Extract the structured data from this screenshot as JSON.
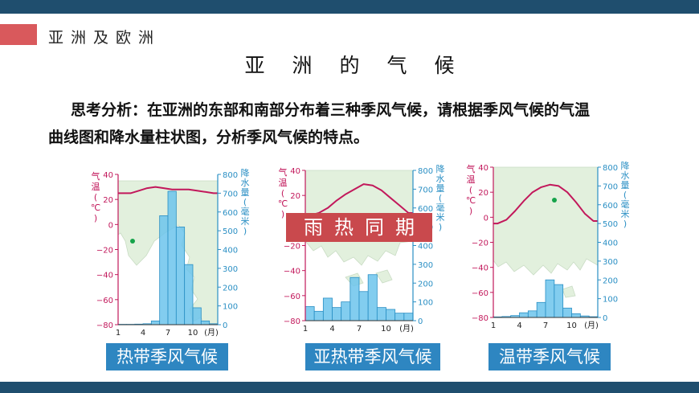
{
  "header": {
    "section": "亚洲及欧洲",
    "title": "亚洲的气候"
  },
  "question": {
    "line1": "思考分析：在亚洲的东部和南部分布着三种季风气候，请根据季风气候的气温",
    "line2": "曲线图和降水量柱状图，分析季风气候的特点。"
  },
  "colors": {
    "header_bar": "#1f4e6e",
    "accent_red": "#d9595c",
    "temp_line": "#c2185b",
    "precip_bar": "#6cc4ec",
    "caption_bg": "#2e86c1",
    "map_land": "#e2f0dd",
    "stamp_bg": "#c9494d",
    "location_dot": "#16a34a"
  },
  "stamp": "雨热同期",
  "chart_data": [
    {
      "type": "bar",
      "title": "热带季风气候",
      "y_left_label": "气温(℃)",
      "y_right_label": "降水量(毫米)",
      "x_ticks": [
        "1",
        "4",
        "7",
        "10"
      ],
      "x_unit": "(月)",
      "left_ticks": [
        "40",
        "20",
        "0",
        "−20",
        "−40",
        "−60",
        "−80"
      ],
      "right_ticks": [
        "800",
        "700",
        "600",
        "500",
        "400",
        "300",
        "200",
        "100",
        "0"
      ],
      "ylim_temp": [
        -80,
        40
      ],
      "ylim_precip": [
        0,
        800
      ],
      "months": [
        1,
        2,
        3,
        4,
        5,
        6,
        7,
        8,
        9,
        10,
        11,
        12
      ],
      "temperature": [
        25,
        25,
        27,
        29,
        30,
        29,
        28,
        28,
        28,
        27,
        26,
        25
      ],
      "precipitation": [
        2,
        2,
        3,
        5,
        20,
        580,
        710,
        520,
        320,
        90,
        20,
        5
      ]
    },
    {
      "type": "bar",
      "title": "亚热带季风气候",
      "y_left_label": "气温(℃)",
      "y_right_label": "降水量(毫米)",
      "x_ticks": [
        "1",
        "4",
        "7",
        "10"
      ],
      "x_unit": "(月)",
      "left_ticks": [
        "40",
        "20",
        "0",
        "−20",
        "−40",
        "−60",
        "−80"
      ],
      "right_ticks": [
        "800",
        "700",
        "600",
        "500",
        "400",
        "300",
        "200",
        "100",
        "0"
      ],
      "ylim_temp": [
        -80,
        40
      ],
      "ylim_precip": [
        0,
        800
      ],
      "months": [
        1,
        2,
        3,
        4,
        5,
        6,
        7,
        8,
        9,
        10,
        11,
        12
      ],
      "temperature": [
        4,
        6,
        10,
        16,
        21,
        25,
        29,
        28,
        24,
        18,
        12,
        6
      ],
      "precipitation": [
        75,
        50,
        120,
        70,
        100,
        230,
        155,
        245,
        70,
        60,
        40,
        40
      ]
    },
    {
      "type": "bar",
      "title": "温带季风气候",
      "y_left_label": "气温(℃)",
      "y_right_label": "降水量(毫米)",
      "x_ticks": [
        "1",
        "4",
        "7",
        "10"
      ],
      "x_unit": "(月)",
      "left_ticks": [
        "40",
        "20",
        "0",
        "−20",
        "−40",
        "−60",
        "−80"
      ],
      "right_ticks": [
        "800",
        "700",
        "600",
        "500",
        "400",
        "300",
        "200",
        "100",
        "0"
      ],
      "ylim_temp": [
        -80,
        40
      ],
      "ylim_precip": [
        0,
        800
      ],
      "months": [
        1,
        2,
        3,
        4,
        5,
        6,
        7,
        8,
        9,
        10,
        11,
        12
      ],
      "temperature": [
        -5,
        -2,
        5,
        13,
        20,
        24,
        26,
        25,
        20,
        12,
        3,
        -3
      ],
      "precipitation": [
        3,
        5,
        10,
        25,
        35,
        80,
        200,
        175,
        50,
        20,
        8,
        4
      ]
    }
  ]
}
